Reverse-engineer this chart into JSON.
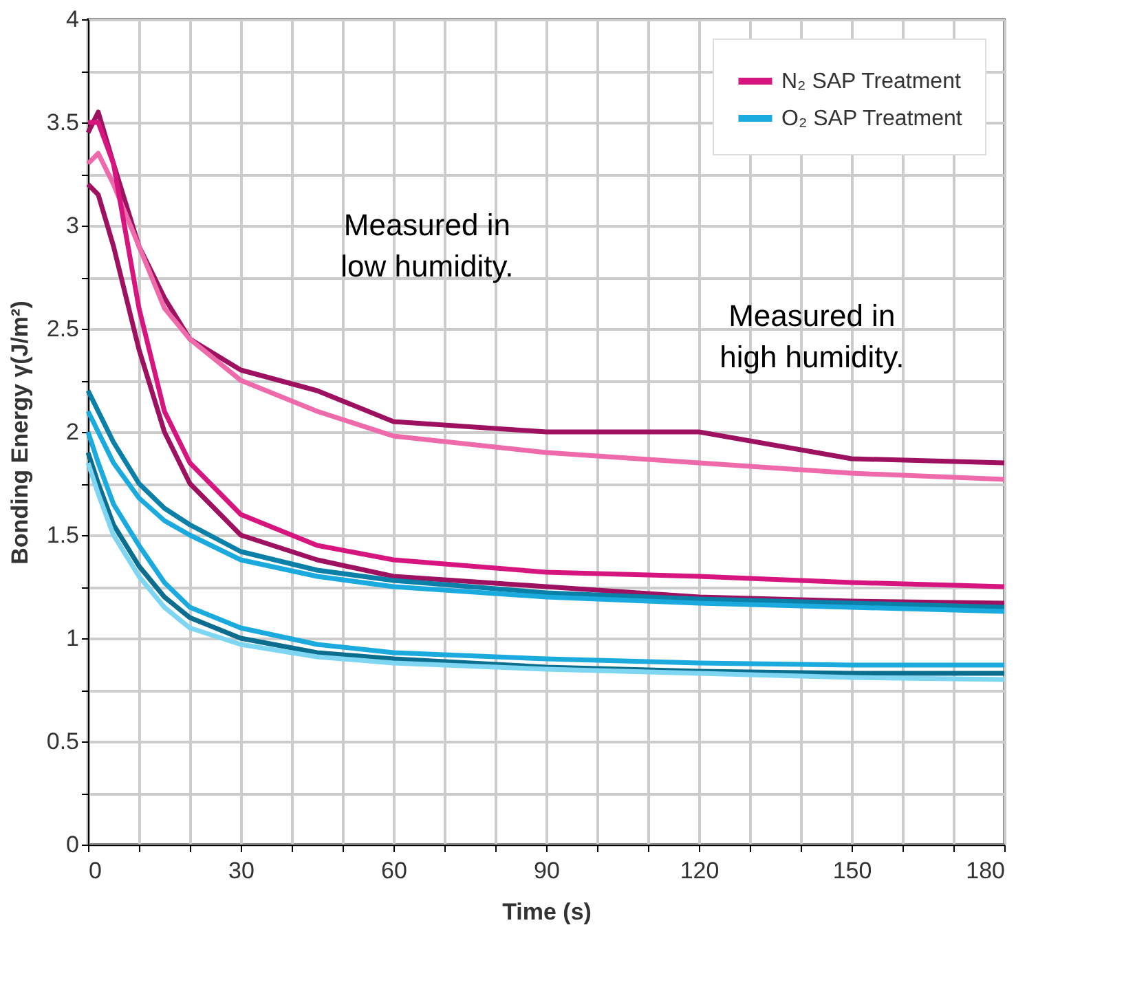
{
  "chart_data": {
    "type": "line",
    "xlabel": "Time (s)",
    "ylabel": "Bonding Energy γ(J/m²)",
    "xlim": [
      0,
      180
    ],
    "ylim": [
      0,
      4
    ],
    "xticks": [
      0,
      {
        "value": 10,
        "label": null
      },
      {
        "value": 20,
        "label": null
      },
      30,
      {
        "value": 40,
        "label": null
      },
      {
        "value": 50,
        "label": null
      },
      60,
      {
        "value": 70,
        "label": null
      },
      {
        "value": 80,
        "label": null
      },
      90,
      {
        "value": 100,
        "label": null
      },
      {
        "value": 110,
        "label": null
      },
      120,
      {
        "value": 130,
        "label": null
      },
      {
        "value": 140,
        "label": null
      },
      150,
      {
        "value": 160,
        "label": null
      },
      {
        "value": 170,
        "label": null
      },
      180
    ],
    "yticks": [
      0,
      {
        "value": 0.25,
        "label": null
      },
      0.5,
      {
        "value": 0.75,
        "label": null
      },
      1,
      {
        "value": 1.25,
        "label": null
      },
      1.5,
      {
        "value": 1.75,
        "label": null
      },
      2,
      {
        "value": 2.25,
        "label": null
      },
      2.5,
      {
        "value": 2.75,
        "label": null
      },
      3,
      {
        "value": 3.25,
        "label": null
      },
      3.5,
      {
        "value": 3.75,
        "label": null
      },
      4
    ],
    "grid": true,
    "legend": "top right",
    "marker": "none",
    "line_style": "solid",
    "x": [
      0,
      2,
      5,
      10,
      15,
      20,
      30,
      45,
      60,
      90,
      120,
      150,
      180
    ],
    "series": [
      {
        "color": "#9e1060",
        "values": [
          3.45,
          3.55,
          3.3,
          2.9,
          2.65,
          2.45,
          2.3,
          2.2,
          2.05,
          2.0,
          2.0,
          1.87,
          1.85
        ]
      },
      {
        "color": "#ee6aaa",
        "values": [
          3.3,
          3.35,
          3.2,
          2.9,
          2.6,
          2.45,
          2.25,
          2.1,
          1.98,
          1.9,
          1.85,
          1.8,
          1.77
        ]
      },
      {
        "name": "N₂ SAP Treatment",
        "color": "#d6157f",
        "values": [
          3.5,
          3.5,
          3.3,
          2.6,
          2.1,
          1.85,
          1.6,
          1.45,
          1.38,
          1.32,
          1.3,
          1.27,
          1.25
        ]
      },
      {
        "color": "#9e1060",
        "values": [
          3.2,
          3.15,
          2.9,
          2.4,
          2.0,
          1.75,
          1.5,
          1.38,
          1.3,
          1.25,
          1.2,
          1.18,
          1.17
        ]
      },
      {
        "color": "#0a7fa8",
        "values": [
          2.2,
          2.1,
          1.95,
          1.75,
          1.63,
          1.55,
          1.42,
          1.33,
          1.28,
          1.22,
          1.19,
          1.17,
          1.15
        ]
      },
      {
        "name": "O₂ SAP Treatment",
        "color": "#1aaade",
        "values": [
          2.1,
          2.0,
          1.85,
          1.68,
          1.57,
          1.5,
          1.38,
          1.3,
          1.25,
          1.2,
          1.17,
          1.15,
          1.13
        ]
      },
      {
        "color": "#1aaade",
        "values": [
          2.0,
          1.85,
          1.65,
          1.45,
          1.27,
          1.15,
          1.05,
          0.97,
          0.93,
          0.9,
          0.88,
          0.87,
          0.87
        ]
      },
      {
        "color": "#0b6e8f",
        "values": [
          1.9,
          1.75,
          1.55,
          1.35,
          1.2,
          1.1,
          1.0,
          0.93,
          0.9,
          0.86,
          0.84,
          0.83,
          0.83
        ]
      },
      {
        "color": "#7fd6f2",
        "values": [
          1.85,
          1.7,
          1.5,
          1.3,
          1.15,
          1.05,
          0.97,
          0.91,
          0.88,
          0.85,
          0.83,
          0.81,
          0.8
        ]
      }
    ],
    "annotations": [
      "Measured in\nlow humidity.",
      "Measured in\nhigh humidity."
    ]
  }
}
